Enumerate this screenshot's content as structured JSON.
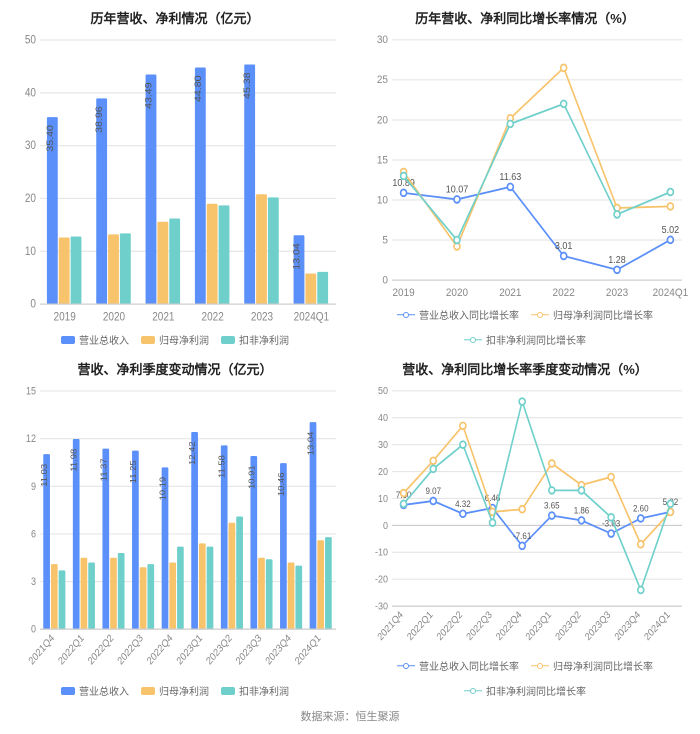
{
  "footer": "数据来源：恒生聚源",
  "colors": {
    "series_blue": "#5b8ff9",
    "series_yellow": "#f7c36b",
    "series_teal": "#6fd0cb",
    "grid": "#e6e6e6",
    "axis": "#cccccc",
    "axis_text": "#888888",
    "value_label": "#555555",
    "title": "#222222",
    "bg": "#ffffff"
  },
  "panels": {
    "topLeft": {
      "title": "历年营收、净利情况（亿元）",
      "type": "bar",
      "categories": [
        "2019",
        "2020",
        "2021",
        "2022",
        "2023",
        "2024Q1"
      ],
      "y": {
        "min": 0,
        "max": 50,
        "step": 10
      },
      "series": [
        {
          "key": "rev",
          "name": "营业总收入",
          "color": "#5b8ff9",
          "values": [
            35.4,
            38.96,
            43.49,
            44.8,
            45.38,
            13.04
          ],
          "labels": [
            "35.40",
            "38.96",
            "43.49",
            "44.80",
            "45.38",
            "13.04"
          ]
        },
        {
          "key": "np",
          "name": "归母净利润",
          "color": "#f7c36b",
          "values": [
            12.6,
            13.2,
            15.6,
            19.0,
            20.8,
            5.8
          ],
          "labels": []
        },
        {
          "key": "dnp",
          "name": "扣非净利润",
          "color": "#6fd0cb",
          "values": [
            12.8,
            13.4,
            16.2,
            18.7,
            20.2,
            6.1
          ],
          "labels": []
        }
      ],
      "legend": [
        {
          "name": "营业总收入",
          "color": "#5b8ff9"
        },
        {
          "name": "归母净利润",
          "color": "#f7c36b"
        },
        {
          "name": "扣非净利润",
          "color": "#6fd0cb"
        }
      ],
      "title_fontsize": 13,
      "axis_fontsize": 10,
      "label_fontsize": 9,
      "bar_group_width": 0.72
    },
    "topRight": {
      "title": "历年营收、净利同比增长率情况（%）",
      "type": "line",
      "categories": [
        "2019",
        "2020",
        "2021",
        "2022",
        "2023",
        "2024Q1"
      ],
      "y": {
        "min": 0,
        "max": 30,
        "step": 5
      },
      "series": [
        {
          "key": "rev",
          "name": "营业总收入同比增长率",
          "color": "#5b8ff9",
          "values": [
            10.89,
            10.07,
            11.63,
            3.01,
            1.28,
            5.02
          ],
          "labels": {
            "0": "10.89",
            "1": "10.07",
            "2": "11.63",
            "3": "3.01",
            "4": "1.28",
            "5": "5.02"
          }
        },
        {
          "key": "np",
          "name": "归母净利润同比增长率",
          "color": "#f7c36b",
          "values": [
            13.5,
            4.2,
            20.2,
            26.5,
            9.0,
            9.2
          ],
          "labels": {}
        },
        {
          "key": "dnp",
          "name": "扣非净利润同比增长率",
          "color": "#6fd0cb",
          "values": [
            13.0,
            5.0,
            19.5,
            22.0,
            8.2,
            11.0
          ],
          "labels": {}
        }
      ],
      "legend": [
        {
          "name": "营业总收入同比增长率",
          "color": "#5b8ff9"
        },
        {
          "name": "归母净利润同比增长率",
          "color": "#f7c36b"
        },
        {
          "name": "扣非净利润同比增长率",
          "color": "#6fd0cb"
        }
      ],
      "title_fontsize": 13,
      "axis_fontsize": 10,
      "label_fontsize": 9,
      "marker_radius": 3,
      "line_width": 1.6
    },
    "bottomLeft": {
      "title": "营收、净利季度变动情况（亿元）",
      "type": "bar",
      "categories": [
        "2021Q4",
        "2022Q1",
        "2022Q2",
        "2022Q3",
        "2022Q4",
        "2023Q1",
        "2023Q2",
        "2023Q3",
        "2023Q4",
        "2024Q1"
      ],
      "rotate_x": -45,
      "y": {
        "min": 0,
        "max": 15,
        "step": 3
      },
      "series": [
        {
          "key": "rev",
          "name": "营业总收入",
          "color": "#5b8ff9",
          "values": [
            11.03,
            11.98,
            11.37,
            11.25,
            10.19,
            12.42,
            11.58,
            10.91,
            10.46,
            13.04
          ],
          "labels": [
            "11.03",
            "11.98",
            "11.37",
            "11.25",
            "10.19",
            "12.42",
            "11.58",
            "10.91",
            "10.46",
            "13.04"
          ]
        },
        {
          "key": "np",
          "name": "归母净利润",
          "color": "#f7c36b",
          "values": [
            4.1,
            4.5,
            4.5,
            3.9,
            4.2,
            5.4,
            6.7,
            4.5,
            4.2,
            5.6
          ],
          "labels": []
        },
        {
          "key": "dnp",
          "name": "扣非净利润",
          "color": "#6fd0cb",
          "values": [
            3.7,
            4.2,
            4.8,
            4.1,
            5.2,
            5.2,
            7.1,
            4.4,
            4.0,
            5.8
          ],
          "labels": []
        }
      ],
      "legend": [
        {
          "name": "营业总收入",
          "color": "#5b8ff9"
        },
        {
          "name": "归母净利润",
          "color": "#f7c36b"
        },
        {
          "name": "扣非净利润",
          "color": "#6fd0cb"
        }
      ],
      "title_fontsize": 13,
      "axis_fontsize": 9,
      "label_fontsize": 8,
      "bar_group_width": 0.78
    },
    "bottomRight": {
      "title": "营收、净利同比增长率季度变动情况（%）",
      "type": "line",
      "categories": [
        "2021Q4",
        "2022Q1",
        "2022Q2",
        "2022Q3",
        "2022Q4",
        "2023Q1",
        "2023Q2",
        "2023Q3",
        "2023Q4",
        "2024Q1"
      ],
      "rotate_x": -45,
      "y": {
        "min": -30,
        "max": 50,
        "step": 10
      },
      "series": [
        {
          "key": "rev",
          "name": "营业总收入同比增长率",
          "color": "#5b8ff9",
          "values": [
            7.6,
            9.07,
            4.32,
            6.46,
            -7.61,
            3.65,
            1.86,
            -3.03,
            2.6,
            5.02
          ],
          "labels": {
            "0": "7.60",
            "1": "9.07",
            "2": "4.32",
            "3": "6.46",
            "4": "-7.61",
            "5": "3.65",
            "6": "1.86",
            "7": "-3.03",
            "8": "2.60",
            "9": "5.02"
          }
        },
        {
          "key": "np",
          "name": "归母净利润同比增长率",
          "color": "#f7c36b",
          "values": [
            12,
            24,
            37,
            5,
            6,
            23,
            15,
            18,
            -7,
            5
          ],
          "labels": {}
        },
        {
          "key": "dnp",
          "name": "扣非净利润同比增长率",
          "color": "#6fd0cb",
          "values": [
            8,
            21,
            30,
            1,
            46,
            13,
            13,
            3,
            -24,
            8
          ],
          "labels": {}
        }
      ],
      "legend": [
        {
          "name": "营业总收入同比增长率",
          "color": "#5b8ff9"
        },
        {
          "name": "归母净利润同比增长率",
          "color": "#f7c36b"
        },
        {
          "name": "扣非净利润同比增长率",
          "color": "#6fd0cb"
        }
      ],
      "title_fontsize": 13,
      "axis_fontsize": 9,
      "label_fontsize": 8,
      "marker_radius": 3,
      "line_width": 1.6
    }
  }
}
